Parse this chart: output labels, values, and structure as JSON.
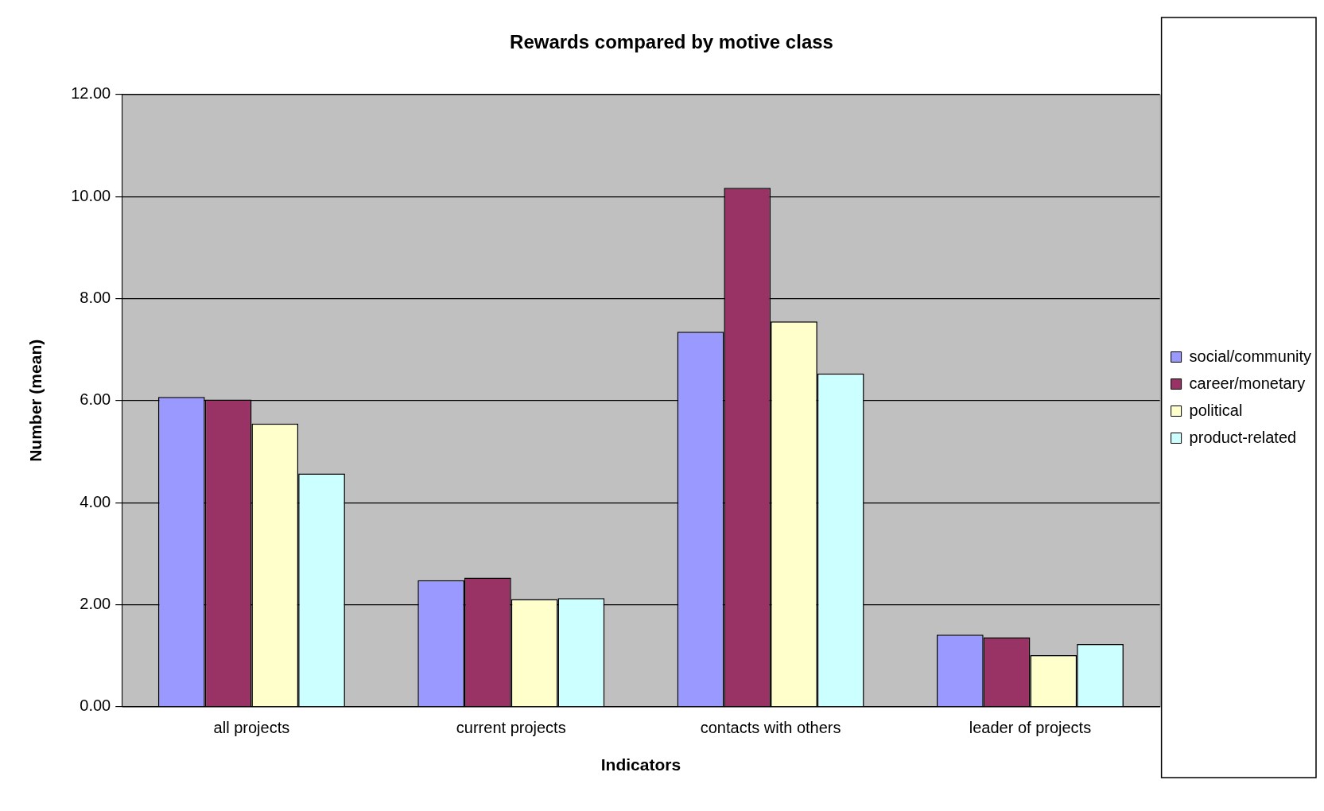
{
  "chart_data": {
    "type": "bar",
    "title": "Rewards compared by motive class",
    "xlabel": "Indicators",
    "ylabel": "Number (mean)",
    "categories": [
      "all projects",
      "current projects",
      "contacts with others",
      "leader of projects"
    ],
    "series": [
      {
        "name": "social/community",
        "color": "#9999ff",
        "values": [
          6.07,
          2.48,
          7.35,
          1.41
        ]
      },
      {
        "name": "career/monetary",
        "color": "#993366",
        "values": [
          6.02,
          2.53,
          10.17,
          1.36
        ]
      },
      {
        "name": "political",
        "color": "#ffffcc",
        "values": [
          5.55,
          2.11,
          7.55,
          1.01
        ]
      },
      {
        "name": "product-related",
        "color": "#ccffff",
        "values": [
          4.57,
          2.13,
          6.53,
          1.23
        ]
      }
    ],
    "ylim": [
      0,
      12
    ],
    "yticks": [
      {
        "value": 0,
        "label": "0.00"
      },
      {
        "value": 2,
        "label": "2.00"
      },
      {
        "value": 4,
        "label": "4.00"
      },
      {
        "value": 6,
        "label": "6.00"
      },
      {
        "value": 8,
        "label": "8.00"
      },
      {
        "value": 10,
        "label": "10.00"
      },
      {
        "value": 12,
        "label": "12.00"
      }
    ],
    "grid": "y",
    "legend": "right"
  }
}
